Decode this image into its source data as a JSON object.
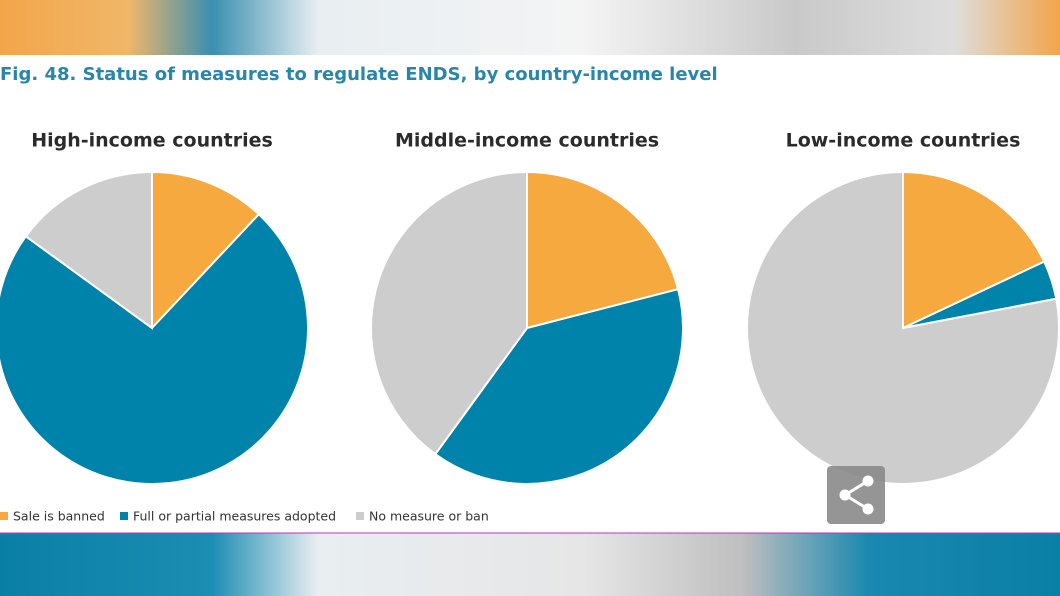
{
  "title": "Fig. 48. Status of measures to regulate ENDS, by country-income level",
  "legend": {
    "labels": [
      "Sale is banned",
      "Full or partial measures adopted",
      "No measure or ban"
    ],
    "colors": [
      "#f5a93f",
      "#0083aa",
      "#cdcdcd"
    ]
  },
  "chart_data": [
    {
      "type": "pie",
      "title": "High-income countries",
      "values": [
        12,
        73,
        15
      ]
    },
    {
      "type": "pie",
      "title": "Middle-income countries",
      "values": [
        21,
        39,
        40
      ]
    },
    {
      "type": "pie",
      "title": "Low-income countries",
      "values": [
        18,
        4,
        78
      ]
    }
  ]
}
